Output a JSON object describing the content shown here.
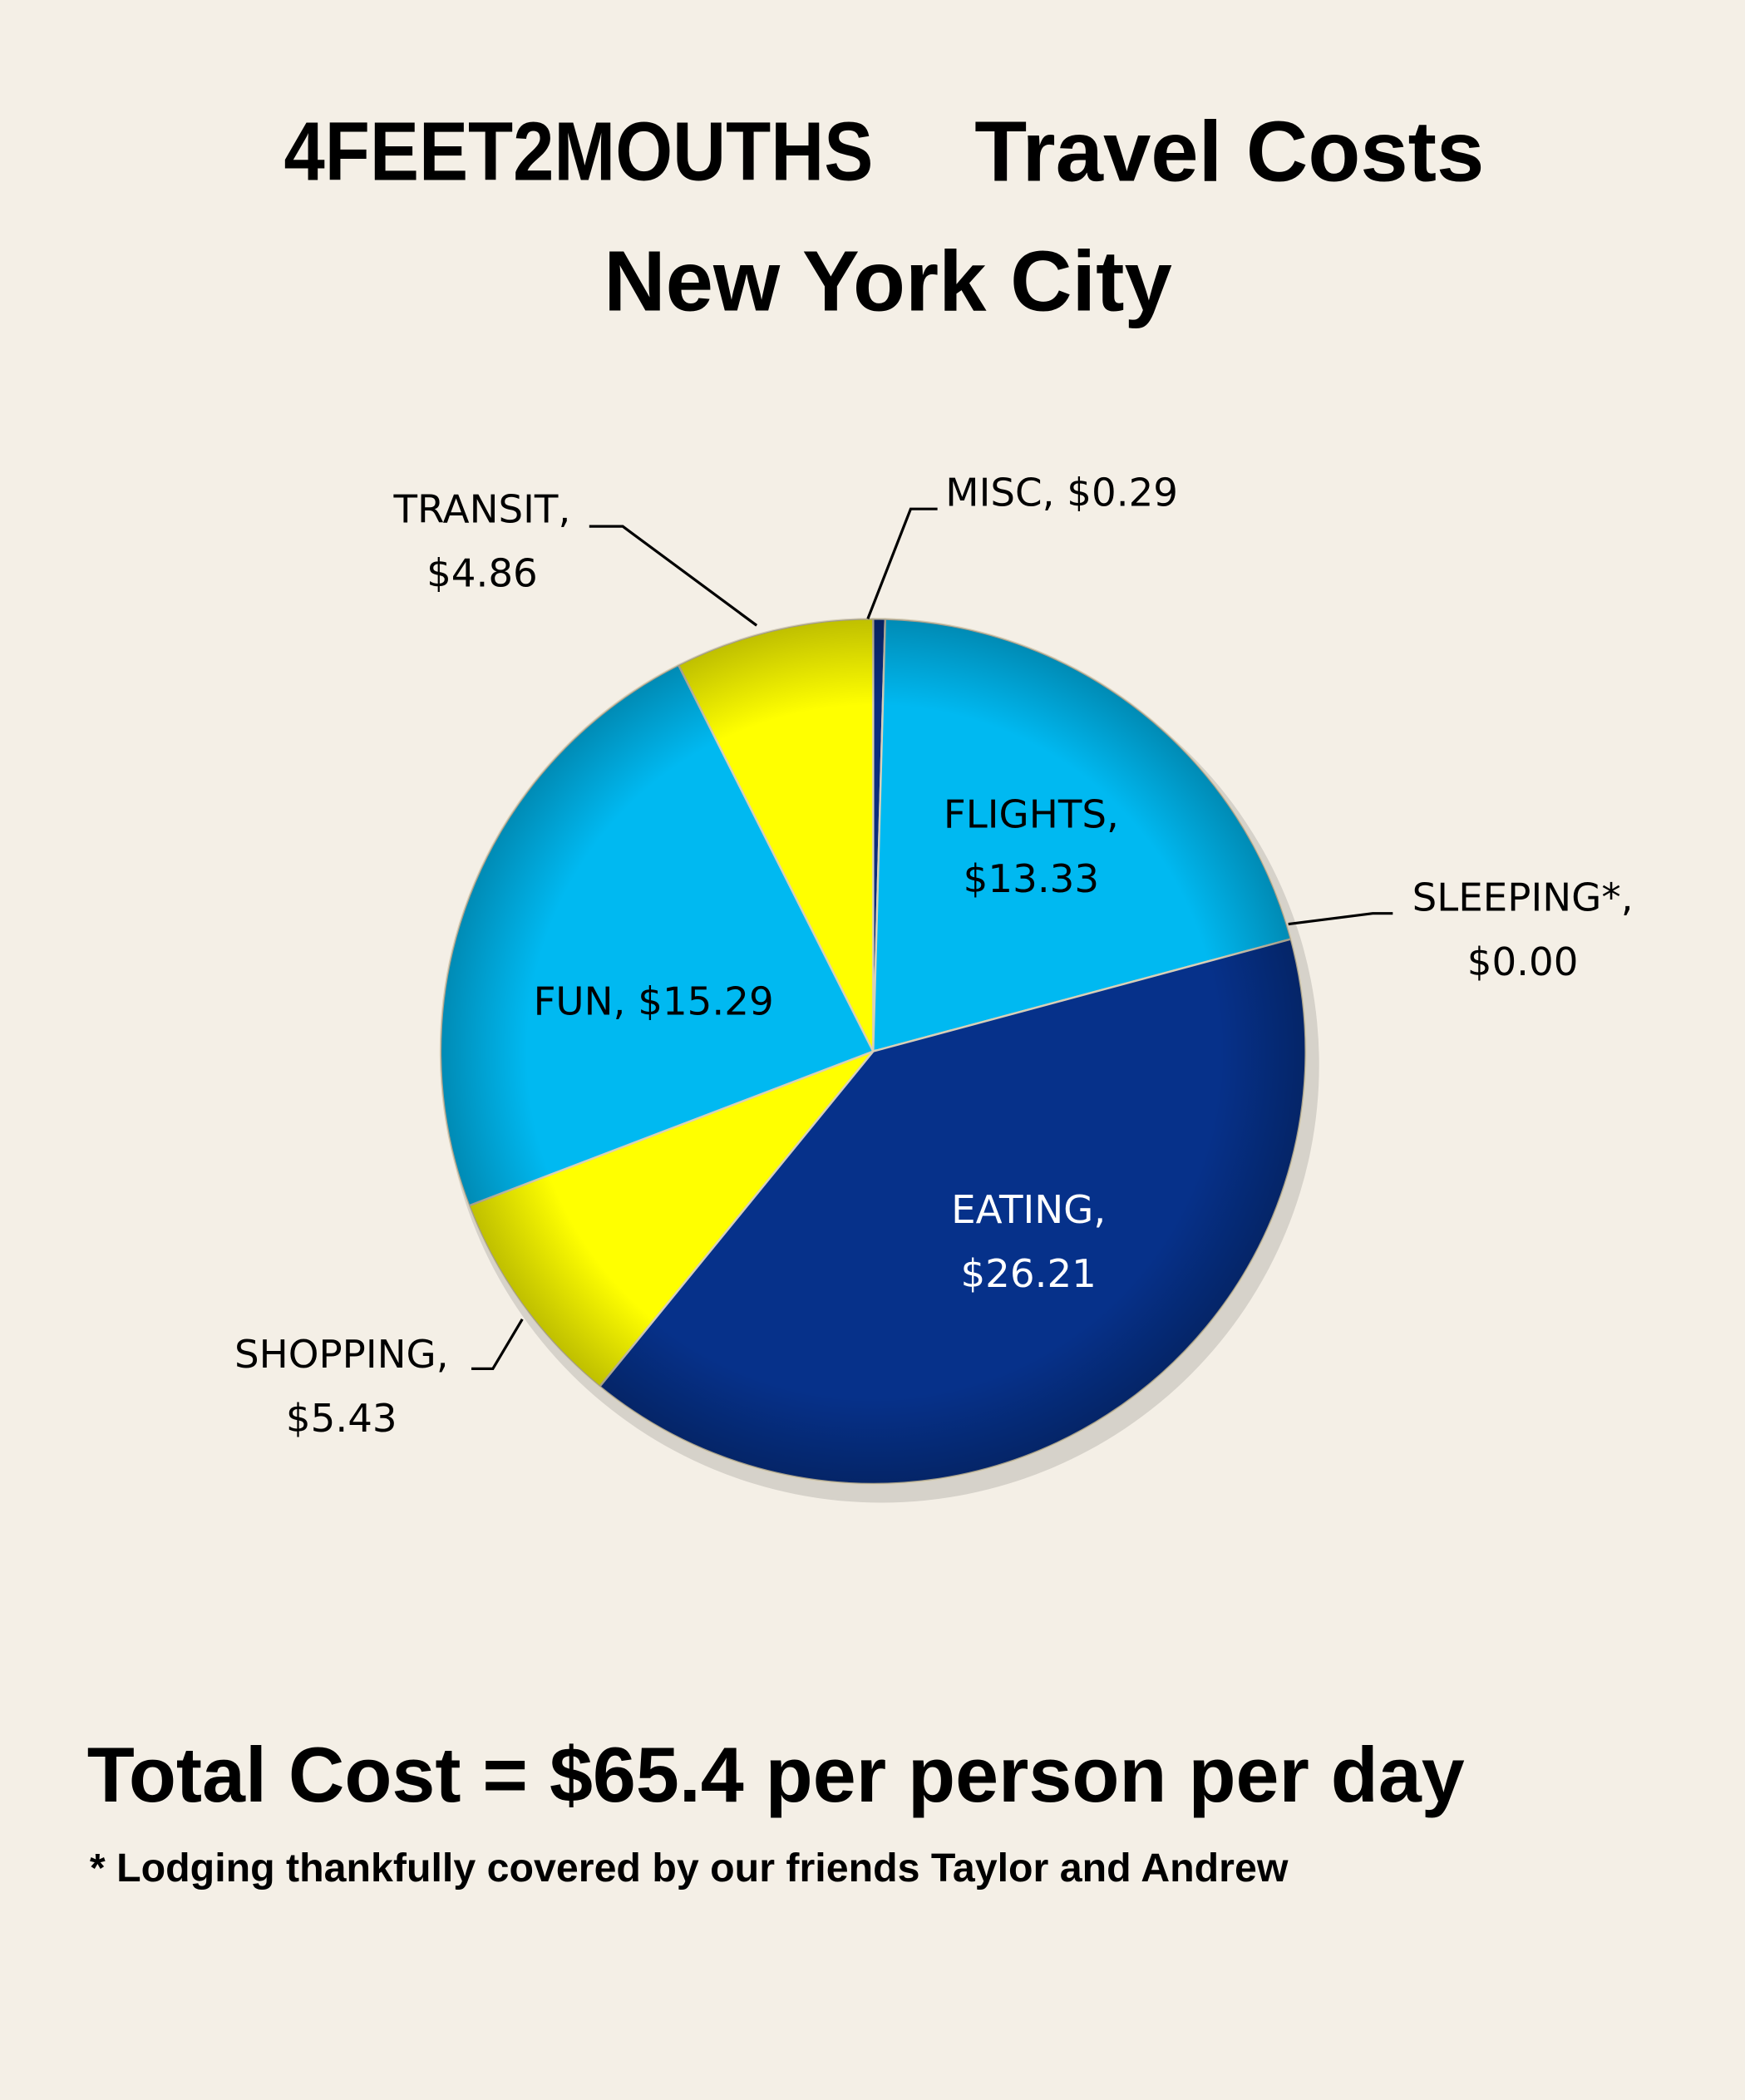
{
  "chart_data": {
    "type": "pie",
    "title": [
      "4FEET2MOUTHS",
      "Travel Costs"
    ],
    "subtitle": "New York City",
    "labels": [
      "MISC, $0.29",
      "FLIGHTS, $13.33",
      "SLEEPING*, $0.00",
      "EATING, $26.21",
      "SHOPPING, $5.43",
      "FUN, $15.29",
      "TRANSIT, $4.86"
    ],
    "values": [
      0.29,
      13.33,
      0.0,
      26.21,
      5.43,
      15.29,
      4.86
    ],
    "colors": [
      "#0b2d7e",
      "#00b9f1",
      "#00b9f1",
      "#06318a",
      "#ffff00",
      "#00b9f1",
      "#ffff00"
    ],
    "annotations": [
      "Total Cost = $65.4 per person per day",
      "* Lodging thankfully covered by our friends Taylor and Andrew"
    ]
  }
}
